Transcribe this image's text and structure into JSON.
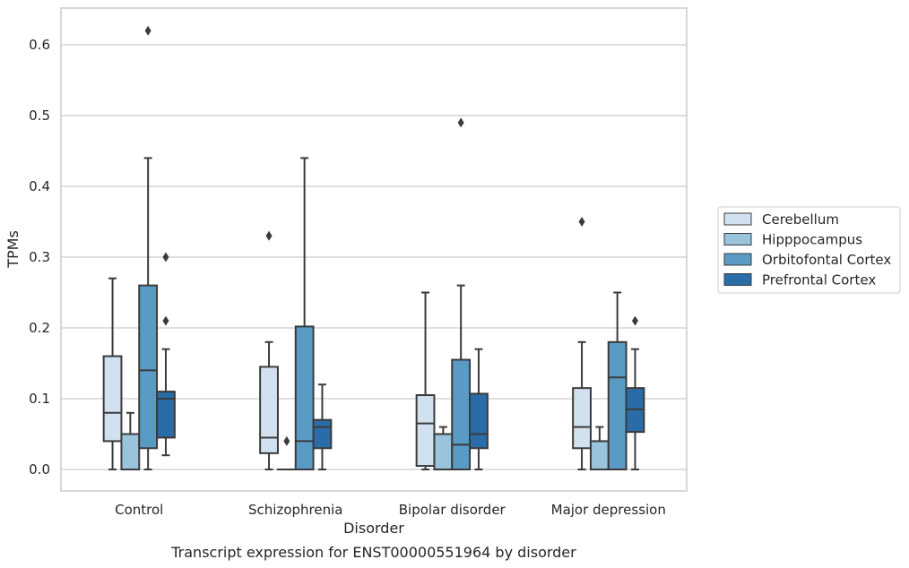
{
  "chart_data": {
    "type": "boxplot",
    "title": "",
    "caption": "Transcript expression for ENST00000551964 by disorder",
    "xlabel": "Disorder",
    "ylabel": "TPMs",
    "ylim": [
      -0.03,
      0.65
    ],
    "yticks": [
      0.0,
      0.1,
      0.2,
      0.3,
      0.4,
      0.5,
      0.6
    ],
    "ytick_labels": [
      "0.0",
      "0.1",
      "0.2",
      "0.3",
      "0.4",
      "0.5",
      "0.6"
    ],
    "grid": "horizontal",
    "legend_position": "right",
    "categories": [
      "Control",
      "Schizophrenia",
      "Bipolar disorder",
      "Major depression"
    ],
    "series": [
      {
        "name": "Cerebellum",
        "color": "#d2e1f0",
        "boxes": [
          {
            "whislo": 0.0,
            "q1": 0.04,
            "med": 0.08,
            "q3": 0.16,
            "whishi": 0.27,
            "fliers": []
          },
          {
            "whislo": 0.0,
            "q1": 0.023,
            "med": 0.045,
            "q3": 0.145,
            "whishi": 0.18,
            "fliers": [
              0.33
            ]
          },
          {
            "whislo": 0.0,
            "q1": 0.005,
            "med": 0.065,
            "q3": 0.105,
            "whishi": 0.25,
            "fliers": []
          },
          {
            "whislo": 0.0,
            "q1": 0.03,
            "med": 0.06,
            "q3": 0.115,
            "whishi": 0.18,
            "fliers": [
              0.35
            ]
          }
        ]
      },
      {
        "name": "Hipppocampus",
        "color": "#9ac3dc",
        "boxes": [
          {
            "whislo": 0.0,
            "q1": 0.0,
            "med": 0.0,
            "q3": 0.05,
            "whishi": 0.08,
            "fliers": []
          },
          {
            "whislo": 0.0,
            "q1": 0.0,
            "med": 0.0,
            "q3": 0.0,
            "whishi": 0.0,
            "fliers": [
              0.04
            ]
          },
          {
            "whislo": 0.0,
            "q1": 0.0,
            "med": 0.0,
            "q3": 0.05,
            "whishi": 0.06,
            "fliers": []
          },
          {
            "whislo": 0.0,
            "q1": 0.0,
            "med": 0.0,
            "q3": 0.04,
            "whishi": 0.06,
            "fliers": []
          }
        ]
      },
      {
        "name": "Orbitofontal Cortex",
        "color": "#5a9bc6",
        "boxes": [
          {
            "whislo": 0.0,
            "q1": 0.03,
            "med": 0.14,
            "q3": 0.26,
            "whishi": 0.44,
            "fliers": [
              0.62
            ]
          },
          {
            "whislo": 0.0,
            "q1": 0.0,
            "med": 0.04,
            "q3": 0.202,
            "whishi": 0.44,
            "fliers": []
          },
          {
            "whislo": 0.0,
            "q1": 0.0,
            "med": 0.035,
            "q3": 0.155,
            "whishi": 0.26,
            "fliers": [
              0.49
            ]
          },
          {
            "whislo": 0.0,
            "q1": 0.0,
            "med": 0.13,
            "q3": 0.18,
            "whishi": 0.25,
            "fliers": []
          }
        ]
      },
      {
        "name": "Prefrontal Cortex",
        "color": "#2a6ca8",
        "boxes": [
          {
            "whislo": 0.02,
            "q1": 0.045,
            "med": 0.1,
            "q3": 0.11,
            "whishi": 0.17,
            "fliers": [
              0.21,
              0.3
            ]
          },
          {
            "whislo": 0.0,
            "q1": 0.03,
            "med": 0.06,
            "q3": 0.07,
            "whishi": 0.12,
            "fliers": []
          },
          {
            "whislo": 0.0,
            "q1": 0.03,
            "med": 0.05,
            "q3": 0.107,
            "whishi": 0.17,
            "fliers": []
          },
          {
            "whislo": 0.0,
            "q1": 0.053,
            "med": 0.085,
            "q3": 0.115,
            "whishi": 0.17,
            "fliers": [
              0.21
            ]
          }
        ]
      }
    ]
  }
}
